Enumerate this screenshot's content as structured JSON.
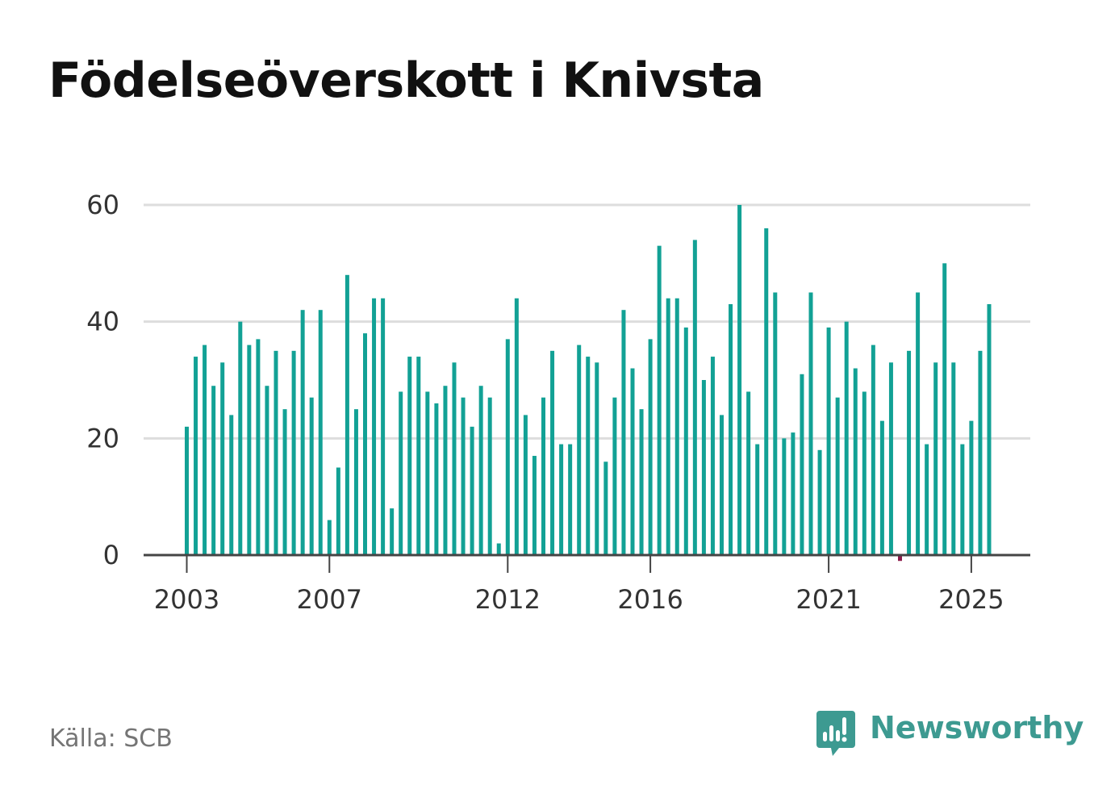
{
  "title": "Födelseöverskott i Knivsta",
  "source": "Källa: SCB",
  "brand": {
    "name": "Newsworthy",
    "logo_icon": "newsworthy-logo-icon",
    "color": "#3d9a91"
  },
  "colors": {
    "positive": "#12a195",
    "negative": "#8b1a4a",
    "grid": "#dddddd",
    "baseline": "#444444",
    "text": "#333333"
  },
  "chart_data": {
    "type": "bar",
    "title": "Födelseöverskott i Knivsta",
    "xlabel": "",
    "ylabel": "",
    "ylim": [
      0,
      60
    ],
    "yticks": [
      0,
      20,
      40,
      60
    ],
    "grid": true,
    "legend": "none",
    "first_period": "2003 Q1",
    "period": "quarter",
    "xticks": [
      {
        "label": "2003",
        "index": 0
      },
      {
        "label": "2007",
        "index": 16
      },
      {
        "label": "2012",
        "index": 36
      },
      {
        "label": "2016",
        "index": 52
      },
      {
        "label": "2021",
        "index": 72
      },
      {
        "label": "2025",
        "index": 88
      }
    ],
    "values": [
      22,
      34,
      36,
      29,
      33,
      24,
      40,
      36,
      37,
      29,
      35,
      25,
      35,
      42,
      27,
      42,
      6,
      15,
      48,
      25,
      38,
      44,
      44,
      8,
      28,
      34,
      34,
      28,
      26,
      29,
      33,
      27,
      22,
      29,
      27,
      2,
      37,
      44,
      24,
      17,
      27,
      35,
      19,
      19,
      36,
      34,
      33,
      16,
      27,
      42,
      32,
      25,
      37,
      53,
      44,
      44,
      39,
      54,
      30,
      34,
      24,
      43,
      60,
      28,
      19,
      56,
      45,
      20,
      21,
      31,
      45,
      18,
      39,
      27,
      40,
      32,
      28,
      36,
      23,
      33,
      -1,
      35,
      45,
      19,
      33,
      50,
      33,
      19,
      23,
      35,
      43
    ]
  }
}
